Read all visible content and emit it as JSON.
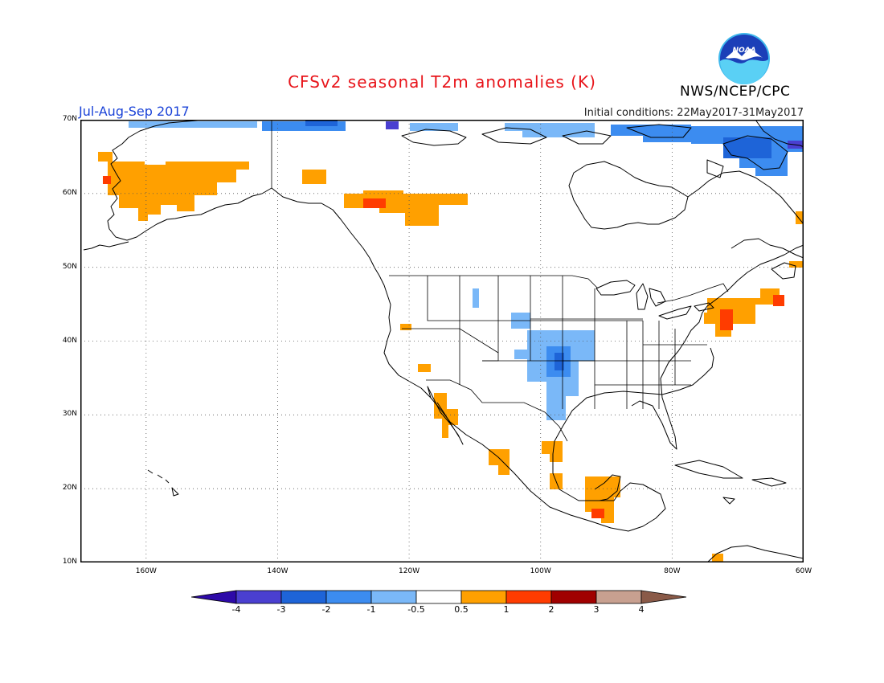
{
  "header": {
    "title": "CFSv2 seasonal T2m anomalies (K)",
    "agency": "NWS/NCEP/CPC",
    "logo_text": "NOAA",
    "season": "Jul-Aug-Sep 2017",
    "init_conditions": "Initial conditions: 22May2017-31May2017"
  },
  "map": {
    "lat_labels": [
      "70N",
      "60N",
      "50N",
      "40N",
      "30N",
      "20N",
      "10N"
    ],
    "lon_labels": [
      "160W",
      "140W",
      "120W",
      "100W",
      "80W",
      "60W"
    ],
    "lat_range": [
      10,
      70
    ],
    "lon_range": [
      -170,
      -60
    ],
    "gridlines": "dotted"
  },
  "colorbar": {
    "ticks": [
      "-4",
      "-3",
      "-2",
      "-1",
      "-0.5",
      "0.5",
      "1",
      "2",
      "3",
      "4"
    ],
    "colors": [
      "#2d0aa8",
      "#4a3fd0",
      "#1e64d8",
      "#3c8cf0",
      "#7ab8f8",
      "#ffffff",
      "#ffa000",
      "#ff3c00",
      "#a00000",
      "#c8a090",
      "#8a5a48"
    ]
  }
}
